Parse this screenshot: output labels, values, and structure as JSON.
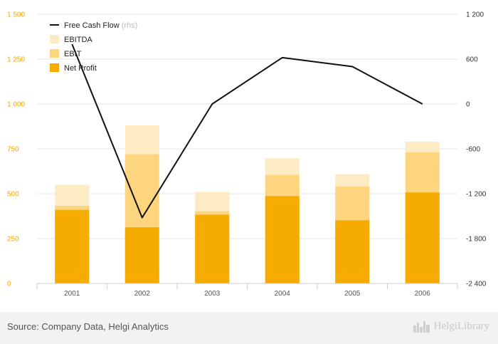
{
  "chart_data": {
    "type": "bar",
    "categories": [
      "2001",
      "2002",
      "2003",
      "2004",
      "2005",
      "2006"
    ],
    "series": [
      {
        "name": "EBITDA",
        "values": [
          550,
          882,
          510,
          697,
          608,
          790
        ],
        "color": "#fdebc3"
      },
      {
        "name": "EBIT",
        "values": [
          432,
          720,
          402,
          605,
          540,
          730
        ],
        "color": "#fdd57e"
      },
      {
        "name": "Net Profit",
        "values": [
          410,
          313,
          383,
          487,
          352,
          507
        ],
        "color": "#f5ab00"
      }
    ],
    "line_series": {
      "name": "Free Cash Flow",
      "name_suffix": "(rhs)",
      "axis": "right",
      "values": [
        800,
        -1520,
        0,
        620,
        500,
        0
      ],
      "color": "#111111"
    },
    "y_left": {
      "range": [
        0,
        1500
      ],
      "ticks": [
        0,
        250,
        500,
        750,
        1000,
        1250,
        1500
      ],
      "tick_labels": [
        "0",
        "250",
        "500",
        "750",
        "1 000",
        "1 250",
        "1 500"
      ]
    },
    "y_right": {
      "range": [
        -2400,
        1200
      ],
      "ticks": [
        -2400,
        -1800,
        -1200,
        -600,
        0,
        600,
        1200
      ],
      "tick_labels": [
        "-2 400",
        "-1 800",
        "-1 200",
        "-600",
        "0",
        "600",
        "1 200"
      ]
    },
    "legend": [
      "Free Cash Flow",
      "EBITDA",
      "EBIT",
      "Net Profit"
    ],
    "legend_position": "top-left",
    "grid": true
  },
  "footer": {
    "source": "Source: Company Data, Helgi Analytics",
    "brand": "HelgiLibrary"
  }
}
